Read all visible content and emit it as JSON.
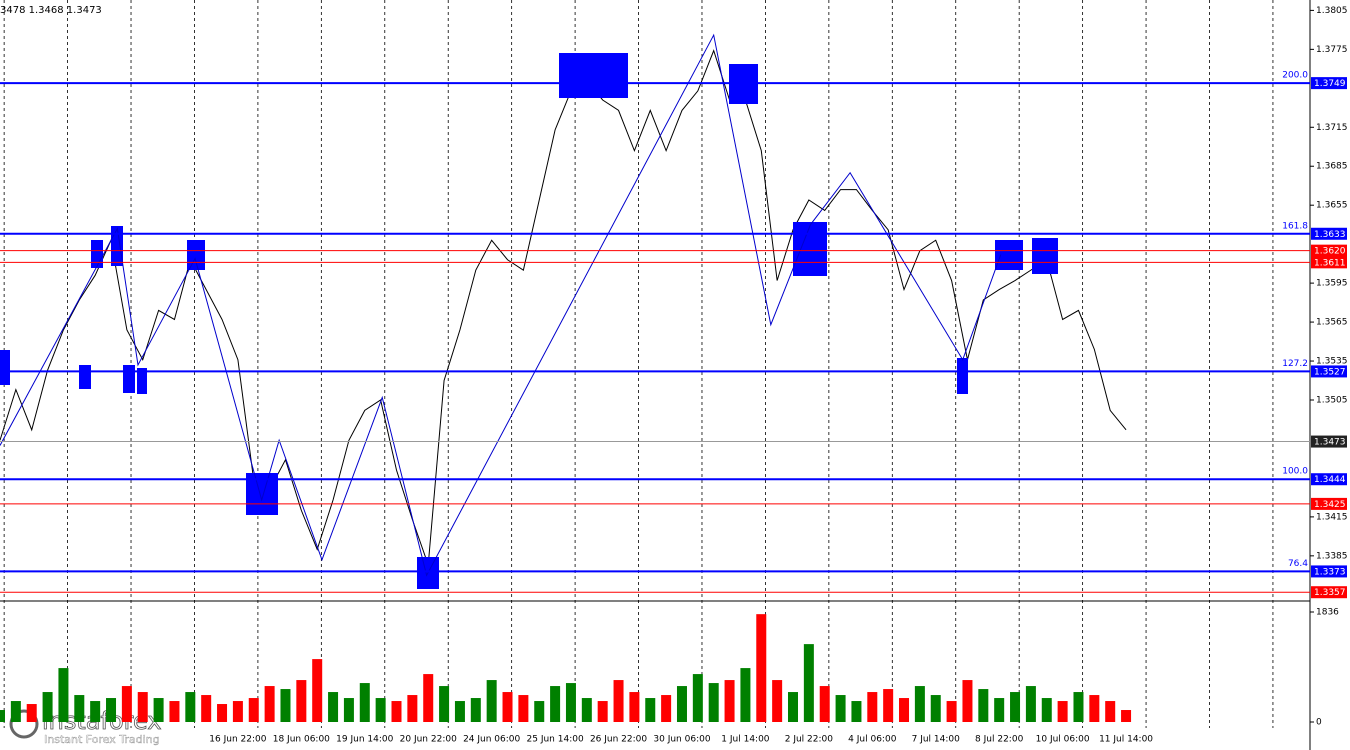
{
  "chart_data": [
    {
      "type": "line",
      "header": "3478 1.3468 1.3473",
      "categories": [
        null,
        null,
        null,
        null,
        null,
        null,
        null,
        null,
        null,
        null,
        null,
        null,
        null,
        null,
        null,
        "16 Jun 22:00",
        null,
        null,
        null,
        "18 Jun 06:00",
        null,
        null,
        null,
        "19 Jun 14:00",
        null,
        null,
        null,
        "20 Jun 22:00",
        null,
        null,
        null,
        "24 Jun 06:00",
        null,
        null,
        null,
        "25 Jun 14:00",
        null,
        null,
        null,
        "26 Jun 22:00",
        null,
        null,
        null,
        "30 Jun 06:00",
        null,
        null,
        null,
        "1 Jul 14:00",
        null,
        null,
        null,
        "2 Jul 22:00",
        null,
        null,
        null,
        "4 Jul 06:00",
        null,
        null,
        null,
        "7 Jul 14:00",
        null,
        null,
        null,
        "8 Jul 22:00",
        null,
        null,
        null,
        "10 Jul 06:00",
        null,
        null,
        null,
        "11 Jul 14:00"
      ],
      "values": [
        1.3474,
        1.3513,
        1.3482,
        1.3528,
        1.3559,
        1.3582,
        1.3601,
        1.3628,
        1.3559,
        1.3536,
        1.3574,
        1.3567,
        1.3613,
        1.359,
        1.3567,
        1.3536,
        1.3443,
        1.3436,
        1.3459,
        1.342,
        1.339,
        1.3428,
        1.3474,
        1.3497,
        1.3505,
        1.3451,
        1.3413,
        1.3378,
        1.352,
        1.3559,
        1.3605,
        1.3628,
        1.3613,
        1.3605,
        1.3659,
        1.3713,
        1.3743,
        1.3751,
        1.3736,
        1.3728,
        1.3697,
        1.3728,
        1.3697,
        1.3728,
        1.3743,
        1.3774,
        1.3736,
        1.3736,
        1.3697,
        1.3597,
        1.3636,
        1.3659,
        1.3651,
        1.3667,
        1.3667,
        1.3651,
        1.3636,
        1.359,
        1.362,
        1.3628,
        1.3597,
        1.3536,
        1.3582,
        1.359,
        1.3597,
        1.3605,
        1.3613,
        1.3567,
        1.3574,
        1.3544,
        1.3497,
        1.3482
      ],
      "color": "#000000",
      "zigzag": {
        "color": "#0000cc",
        "x": [
          0,
          7.4,
          8.7,
          12.3,
          16.5,
          17.6,
          20.3,
          24.1,
          26.9,
          45.0,
          48.6,
          51.1,
          53.6,
          60.7,
          63.1
        ],
        "y": [
          1.347,
          1.3637,
          1.3532,
          1.3614,
          1.3428,
          1.3474,
          1.3382,
          1.3507,
          1.337,
          1.3786,
          1.3563,
          1.364,
          1.368,
          1.3536,
          1.3617
        ]
      },
      "levels": [
        {
          "price": 1.3749,
          "fib": "200.0",
          "color": "#0000ff"
        },
        {
          "price": 1.3633,
          "fib": "161.8",
          "color": "#0000ff"
        },
        {
          "price": {
            "value": 1.362,
            "label": "1.3620"
          },
          "color": "#ff0000"
        },
        {
          "price": 1.3611,
          "color": "#ff0000"
        },
        {
          "price": 1.3527,
          "fib": "127.2",
          "color": "#0000ff"
        },
        {
          "price": 1.3473,
          "color": "#999999"
        },
        {
          "price": 1.3444,
          "fib": "100.0",
          "color": "#0000ff"
        },
        {
          "price": 1.3425,
          "color": "#ff0000"
        },
        {
          "price": 1.3373,
          "fib": "76.4",
          "color": "#0000ff"
        },
        {
          "price": 1.3357,
          "color": "#ff0000"
        }
      ],
      "ylim": [
        1.3351,
        1.3813
      ],
      "yticks": [
        1.3385,
        1.3415,
        1.3505,
        1.3535,
        1.3565,
        1.3595,
        1.3655,
        1.3685,
        1.3715,
        1.3775,
        1.3805
      ],
      "grid": true
    },
    {
      "type": "bar",
      "values": [
        200,
        350,
        300,
        500,
        900,
        450,
        350,
        400,
        600,
        500,
        400,
        350,
        500,
        450,
        300,
        350,
        400,
        600,
        550,
        700,
        1050,
        500,
        400,
        650,
        400,
        350,
        450,
        800,
        600,
        350,
        400,
        700,
        500,
        450,
        350,
        600,
        650,
        400,
        350,
        700,
        500,
        400,
        450,
        600,
        800,
        650,
        700,
        900,
        1800,
        700,
        500,
        1300,
        600,
        450,
        350,
        500,
        550,
        400,
        600,
        450,
        350,
        700,
        550,
        400,
        500,
        600,
        400,
        350,
        500,
        450,
        350,
        200
      ],
      "up_color": "#008000",
      "down_color": "#ff0000",
      "ylim": [
        0,
        1836
      ],
      "yticks": [
        0,
        1836
      ]
    },
    {
      "logo": "instaforex",
      "tagline": "Instant Forex Trading"
    }
  ]
}
